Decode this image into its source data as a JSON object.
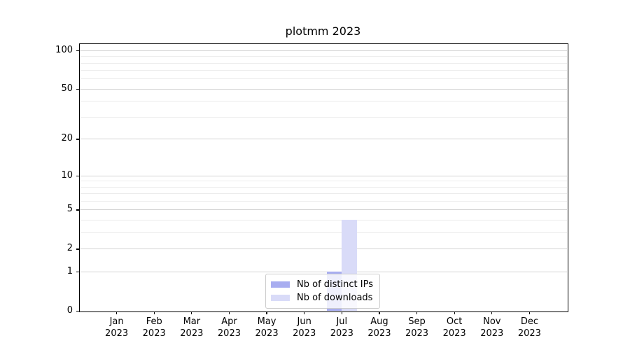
{
  "chart_data": {
    "type": "bar",
    "title": "plotmm 2023",
    "categories": [
      "Jan 2023",
      "Feb 2023",
      "Mar 2023",
      "Apr 2023",
      "May 2023",
      "Jun 2023",
      "Jul 2023",
      "Aug 2023",
      "Sep 2023",
      "Oct 2023",
      "Nov 2023",
      "Dec 2023"
    ],
    "series": [
      {
        "name": "Nb of distinct IPs",
        "color": "#a8adf0",
        "values": [
          0,
          0,
          0,
          0,
          0,
          0,
          1,
          0,
          0,
          0,
          0,
          0
        ]
      },
      {
        "name": "Nb of downloads",
        "color": "#d9dbf8",
        "values": [
          0,
          0,
          0,
          0,
          0,
          0,
          4,
          0,
          0,
          0,
          0,
          0
        ]
      }
    ],
    "xlabel": "",
    "ylabel": "",
    "y_scale": "log1p",
    "y_ticks": [
      0,
      1,
      2,
      5,
      10,
      20,
      50,
      100
    ],
    "y_minor_ticks": [
      3,
      4,
      6,
      7,
      8,
      9,
      30,
      40,
      60,
      70,
      80,
      90
    ],
    "ylim": [
      0,
      113
    ],
    "grid": true,
    "legend_position": "lower center",
    "colors": {
      "major_grid": "#d4d4d4",
      "minor_grid": "#ececec",
      "axis": "#000000",
      "background": "#ffffff"
    }
  }
}
